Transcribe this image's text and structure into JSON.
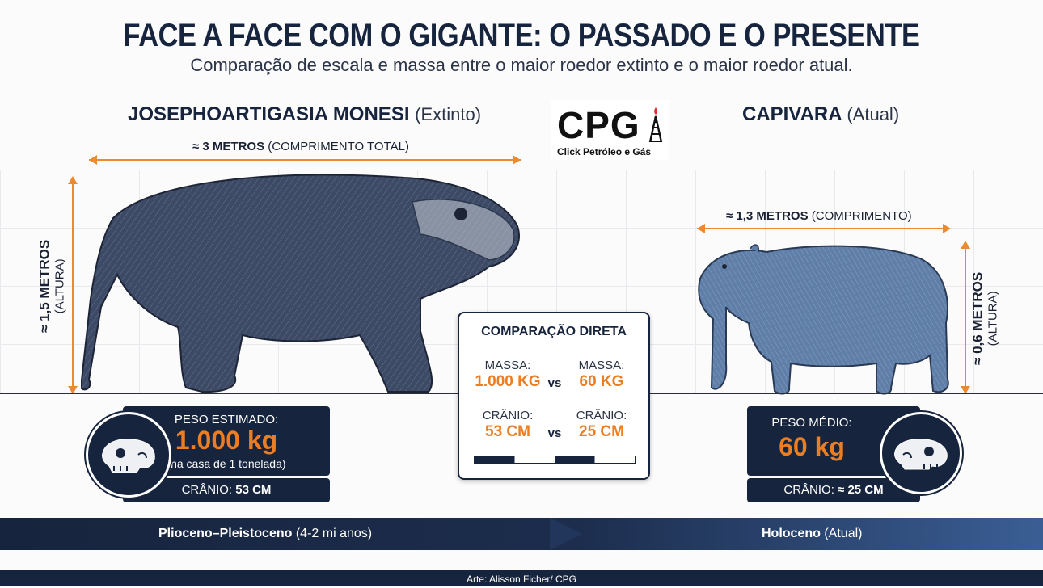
{
  "header": {
    "title": "FACE A FACE COM O GIGANTE: O PASSADO E O PRESENTE",
    "subtitle": "Comparação de escala e massa entre o maior roedor extinto e o maior roedor atual."
  },
  "logo": {
    "text": "CPG",
    "tagline": "Click Petróleo e Gás"
  },
  "extinct": {
    "name": "JOSEPHOARTIGASIA MONESI",
    "qualifier": "(Extinto)",
    "length_value": "≈ 3 METROS",
    "length_note": "(COMPRIMENTO TOTAL)",
    "height_value": "≈ 1,5 METROS",
    "height_note": "(ALTURA)",
    "weight_label": "PESO ESTIMADO:",
    "weight_value": "1.000 kg",
    "weight_note": "(na casa de 1 tonelada)",
    "skull_label": "CRÂNIO:",
    "skull_value": "53 CM"
  },
  "current": {
    "name": "CAPIVARA",
    "qualifier": "(Atual)",
    "length_value": "≈ 1,3 METROS",
    "length_note": "(COMPRIMENTO)",
    "height_value": "≈ 0,6 METROS",
    "height_note": "(ALTURA)",
    "weight_label": "PESO MÉDIO:",
    "weight_value": "60 kg",
    "skull_label": "CRÂNIO:",
    "skull_value": "≈ 25 CM"
  },
  "comparison": {
    "title": "COMPARAÇÃO DIRETA",
    "mass_label": "MASSA:",
    "mass_left": "1.000 KG",
    "mass_right": "60 KG",
    "skull_label": "CRÂNIO:",
    "skull_left": "53 CM",
    "skull_right": "25 CM",
    "vs": "vs"
  },
  "timeline": {
    "left_era": "Plioceno–Pleistoceno",
    "left_range": "(4-2 mi anos)",
    "right_era": "Holoceno",
    "right_range": "(Atual)"
  },
  "footer": {
    "credit": "Arte: Alisson Ficher/ CPG"
  },
  "colors": {
    "navy": "#17243d",
    "orange": "#ec7d20",
    "fur_extinct": "#3d4a66",
    "fur_current": "#5f7fa8"
  },
  "icons": [
    "skull-icon",
    "oil-rig-icon",
    "flame-icon"
  ]
}
